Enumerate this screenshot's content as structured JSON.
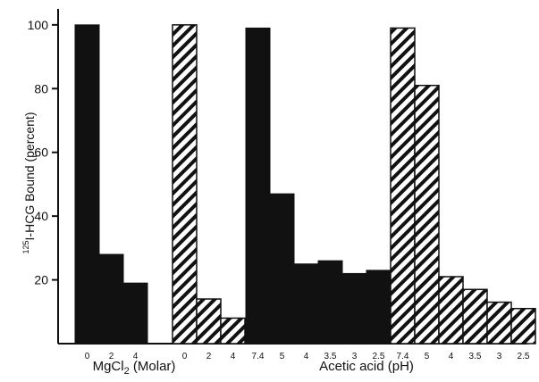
{
  "chart_data": {
    "type": "bar",
    "ylabel_parts": {
      "sup": "125",
      "main": "I-HCG  Bound  (percent)"
    },
    "ylim": [
      0,
      105
    ],
    "yticks": [
      "20",
      "40",
      "60",
      "80",
      "100"
    ],
    "ytick_values": [
      20,
      40,
      60,
      80,
      100
    ],
    "fills": {
      "solid": "#111111",
      "hatched": "#ffffff",
      "hatch_color": "#111111"
    },
    "groups": [
      {
        "xlabel_parts": {
          "pre": "MgCl",
          "sub": "2",
          "post": " (Molar)"
        },
        "series": [
          {
            "fill": "solid",
            "categories": [
              "0",
              "2",
              "4"
            ],
            "values": [
              100,
              28,
              19
            ]
          },
          {
            "fill": "hatched",
            "categories": [
              "0",
              "2",
              "4"
            ],
            "values": [
              100,
              14,
              8
            ]
          }
        ]
      },
      {
        "xlabel": "Acetic  acid  (pH)",
        "series": [
          {
            "fill": "solid",
            "categories": [
              "7.4",
              "5",
              "4",
              "3.5",
              "3",
              "2.5"
            ],
            "values": [
              99,
              47,
              25,
              26,
              22,
              23
            ]
          },
          {
            "fill": "hatched",
            "categories": [
              "7.4",
              "5",
              "4",
              "3.5",
              "3",
              "2.5"
            ],
            "values": [
              99,
              81,
              21,
              17,
              13,
              11
            ]
          }
        ]
      }
    ],
    "grid": false,
    "legend": "none"
  }
}
